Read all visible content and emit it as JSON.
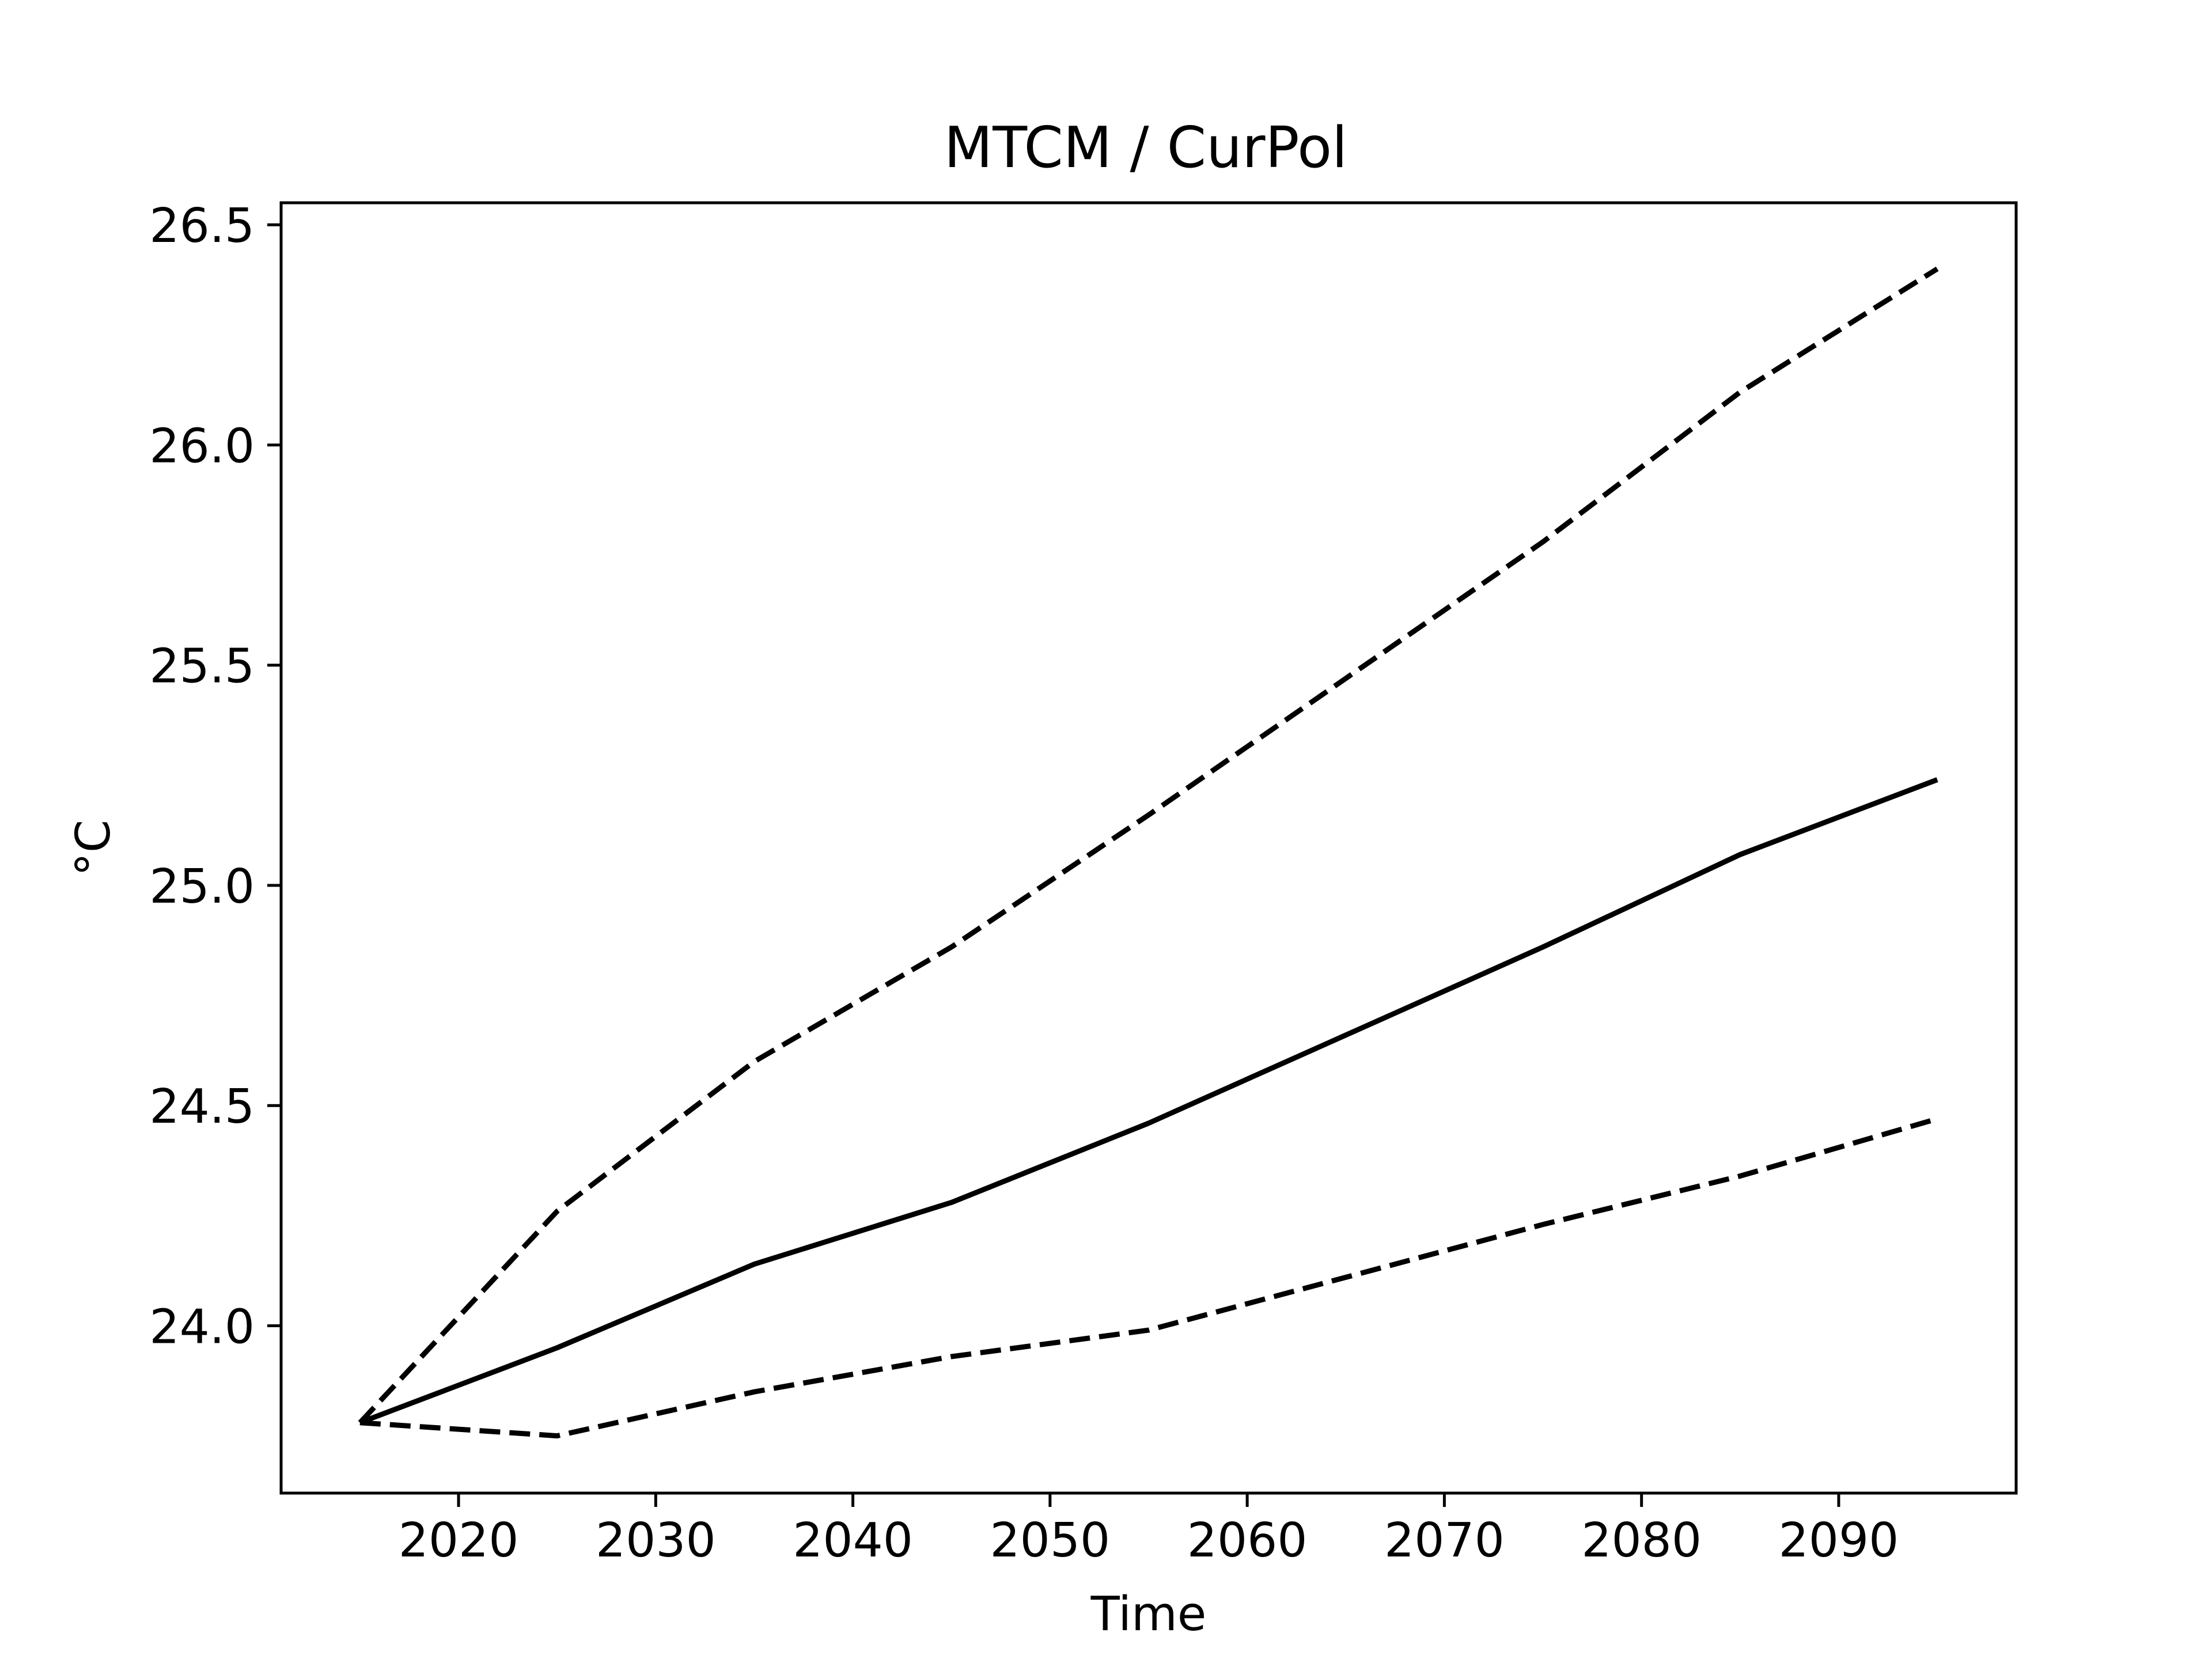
{
  "chart_data": {
    "type": "line",
    "title": "MTCM / CurPol",
    "xlabel": "Time",
    "ylabel": "°C",
    "xlim": [
      2011,
      2099
    ],
    "ylim": [
      23.62,
      26.55
    ],
    "xticks": [
      2020,
      2030,
      2040,
      2050,
      2060,
      2070,
      2080,
      2090
    ],
    "yticks": [
      24.0,
      24.5,
      25.0,
      25.5,
      26.0,
      26.5
    ],
    "ytick_labels": [
      "24.0",
      "24.5",
      "25.0",
      "25.5",
      "26.0",
      "26.5"
    ],
    "grid": false,
    "x": [
      2015,
      2025,
      2035,
      2045,
      2055,
      2065,
      2075,
      2085,
      2095
    ],
    "series": [
      {
        "values": [
          23.78,
          23.95,
          24.14,
          24.28,
          24.46,
          24.66,
          24.86,
          25.07,
          25.24
        ],
        "style": "solid",
        "color": "#000000"
      },
      {
        "values": [
          23.78,
          24.26,
          24.6,
          24.86,
          25.16,
          25.47,
          25.78,
          26.12,
          26.4
        ],
        "style": "dashed",
        "color": "#000000"
      },
      {
        "values": [
          23.78,
          23.75,
          23.85,
          23.93,
          23.99,
          24.11,
          24.23,
          24.34,
          24.47
        ],
        "style": "dashed",
        "color": "#000000"
      }
    ]
  }
}
